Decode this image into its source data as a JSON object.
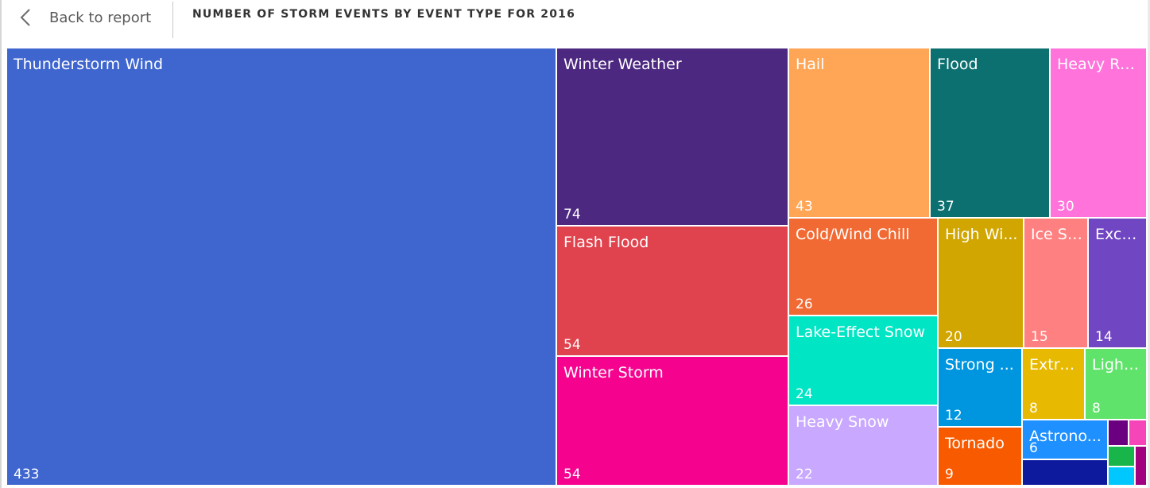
{
  "header": {
    "back_label": "Back to report",
    "back_icon": "chevron-left-icon",
    "title": "NUMBER OF STORM EVENTS BY EVENT TYPE FOR 2016"
  },
  "chart_data": {
    "type": "treemap",
    "title": "NUMBER OF STORM EVENTS BY EVENT TYPE FOR 2016",
    "items": [
      {
        "label": "Thunderstorm Wind",
        "display_label": "Thunderstorm Wind",
        "value": 433,
        "color": "#3F66CF"
      },
      {
        "label": "Winter Weather",
        "display_label": "Winter Weather",
        "value": 74,
        "color": "#4C2880"
      },
      {
        "label": "Flash Flood",
        "display_label": "Flash Flood",
        "value": 54,
        "color": "#E0434D"
      },
      {
        "label": "Winter Storm",
        "display_label": "Winter Storm",
        "value": 54,
        "color": "#F5038F"
      },
      {
        "label": "Hail",
        "display_label": "Hail",
        "value": 43,
        "color": "#FFA656"
      },
      {
        "label": "Flood",
        "display_label": "Flood",
        "value": 37,
        "color": "#0D7070"
      },
      {
        "label": "Heavy Rain",
        "display_label": "Heavy Rain",
        "value": 30,
        "color": "#FF73DA"
      },
      {
        "label": "Cold/Wind Chill",
        "display_label": "Cold/Wind Chill",
        "value": 26,
        "color": "#F26A33"
      },
      {
        "label": "Lake-Effect Snow",
        "display_label": "Lake-Effect Snow",
        "value": 24,
        "color": "#00E6C4"
      },
      {
        "label": "Heavy Snow",
        "display_label": "Heavy Snow",
        "value": 22,
        "color": "#C9A8FF"
      },
      {
        "label": "High Wi...",
        "display_label": "High Wi...",
        "value": 20,
        "color": "#D1A600"
      },
      {
        "label": "Ice St...",
        "display_label": "Ice St...",
        "value": 15,
        "color": "#FF8080"
      },
      {
        "label": "Exce...",
        "display_label": "Exce...",
        "value": 14,
        "color": "#7046C2"
      },
      {
        "label": "Strong ...",
        "display_label": "Strong ...",
        "value": 12,
        "color": "#0096DF"
      },
      {
        "label": "Extre...",
        "display_label": "Extre...",
        "value": 8,
        "color": "#E7B900"
      },
      {
        "label": "Light...",
        "display_label": "Light...",
        "value": 8,
        "color": "#5FE36A"
      },
      {
        "label": "Tornado",
        "display_label": "Tornado",
        "value": 9,
        "color": "#F85A00"
      },
      {
        "label": "Astrono...",
        "display_label": "Astrono...",
        "value": 6,
        "color": "#1E90FF"
      },
      {
        "label": "",
        "display_label": "",
        "value": 3,
        "color": "#0D1A9E"
      },
      {
        "label": "",
        "display_label": "",
        "value": 2,
        "color": "#6A0080"
      },
      {
        "label": "",
        "display_label": "",
        "value": 2,
        "color": "#F545B8"
      },
      {
        "label": "",
        "display_label": "",
        "value": 1,
        "color": "#17B54A"
      },
      {
        "label": "",
        "display_label": "",
        "value": 1,
        "color": "#A1007E"
      },
      {
        "label": "",
        "display_label": "",
        "value": 1,
        "color": "#00C8FF"
      }
    ]
  }
}
